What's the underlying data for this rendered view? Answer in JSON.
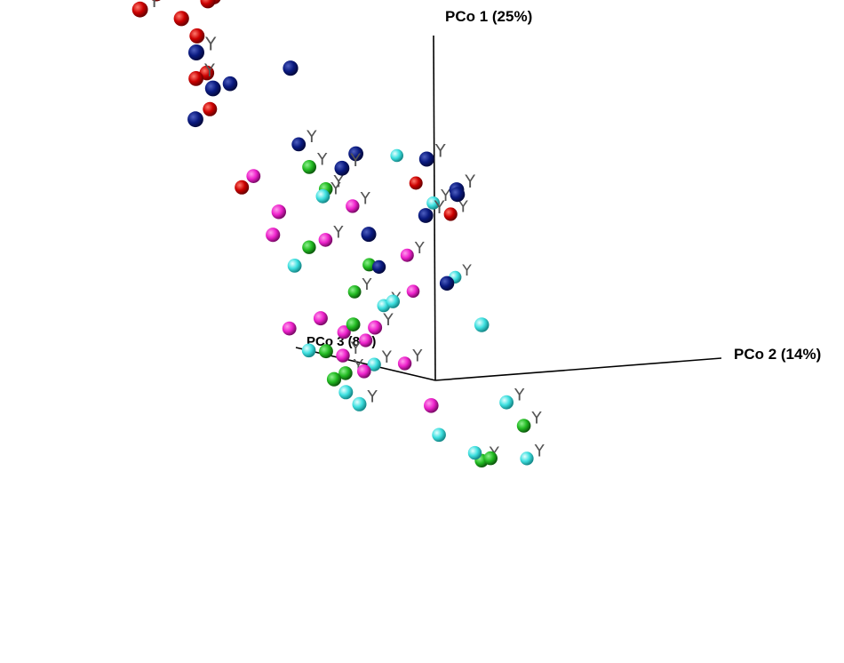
{
  "chart_data": {
    "type": "scatter",
    "projection": "3d-perspective",
    "axes": {
      "pco1": "PCo 1 (25%)",
      "pco2": "PCo 2 (14%)",
      "pco3": "PCo 3 (8%)"
    },
    "marker_text": "Y",
    "colors": {
      "red": "#cc0000",
      "navy": "#0a1a80",
      "green": "#22bb22",
      "cyan": "#3ee0e0",
      "magenta": "#ee22cc"
    },
    "series": [
      {
        "color": "red",
        "points": [
          {
            "x": 0.52,
            "y": 0.97,
            "z": 0.78,
            "label": "Y"
          },
          {
            "x": 0.53,
            "y": 0.95,
            "z": 0.7,
            "label": "Y"
          },
          {
            "x": 0.56,
            "y": 0.93,
            "z": 0.66
          },
          {
            "x": 0.6,
            "y": 0.92,
            "z": 0.6,
            "label": "Y"
          },
          {
            "x": 0.62,
            "y": 0.93,
            "z": 0.6
          },
          {
            "x": 0.55,
            "y": 0.88,
            "z": 0.68,
            "label": "Y"
          },
          {
            "x": 0.6,
            "y": 0.86,
            "z": 0.64
          },
          {
            "x": 0.63,
            "y": 0.81,
            "z": 0.63
          },
          {
            "x": 0.73,
            "y": 0.69,
            "z": 0.66
          },
          {
            "x": 0.67,
            "y": 0.68,
            "z": 0.65,
            "label": "Y"
          },
          {
            "x": 0.83,
            "y": 0.57,
            "z": 0.7
          },
          {
            "x": 0.58,
            "y": 0.39,
            "z": 0.23,
            "label": "Y"
          },
          {
            "x": 0.69,
            "y": 0.45,
            "z": 0.33
          },
          {
            "x": 0.8,
            "y": 0.36,
            "z": 0.64
          }
        ]
      },
      {
        "color": "navy",
        "points": [
          {
            "x": 0.38,
            "y": 0.79,
            "z": 0.38
          },
          {
            "x": 0.4,
            "y": 0.8,
            "z": 0.53,
            "label": "Y"
          },
          {
            "x": 0.41,
            "y": 0.7,
            "z": 0.51
          },
          {
            "x": 0.44,
            "y": 0.6,
            "z": 0.55
          },
          {
            "x": 0.35,
            "y": 0.57,
            "z": 0.27
          },
          {
            "x": 0.37,
            "y": 0.52,
            "z": 0.3,
            "label": "Y"
          },
          {
            "x": 0.16,
            "y": 0.61,
            "z": 0.08,
            "label": "Y"
          },
          {
            "x": 0.17,
            "y": 0.53,
            "z": 0.04,
            "label": "Y"
          },
          {
            "x": 0.15,
            "y": 0.52,
            "z": 0.03
          },
          {
            "x": 0.2,
            "y": 0.44,
            "z": 0.1,
            "label": "Y"
          },
          {
            "x": 0.3,
            "y": 0.35,
            "z": 0.23
          },
          {
            "x": 0.27,
            "y": 0.24,
            "z": 0.1
          },
          {
            "x": 0.65,
            "y": 0.68,
            "z": 0.59
          },
          {
            "x": 0.7,
            "y": 0.52,
            "z": 0.51,
            "label": "Y"
          },
          {
            "x": 0.72,
            "y": 0.19,
            "z": 0.4
          }
        ]
      },
      {
        "color": "green",
        "points": [
          {
            "x": 0.69,
            "y": 0.46,
            "z": 0.49,
            "label": "Y"
          },
          {
            "x": 0.7,
            "y": 0.4,
            "z": 0.47,
            "label": "Y"
          },
          {
            "x": 0.8,
            "y": 0.21,
            "z": 0.54
          },
          {
            "x": 0.8,
            "y": 0.18,
            "z": 0.45
          },
          {
            "x": 0.84,
            "y": 0.09,
            "z": 0.49,
            "label": "Y"
          },
          {
            "x": 0.63,
            "y": 0.03,
            "z": 0.4
          },
          {
            "x": 0.65,
            "y": -0.06,
            "z": 0.45
          },
          {
            "x": 0.67,
            "y": -0.12,
            "z": 0.43,
            "label": "Y"
          },
          {
            "x": 0.54,
            "y": -0.12,
            "z": 0.39
          },
          {
            "x": 0.3,
            "y": -0.15,
            "z": 0.0,
            "label": "Y"
          },
          {
            "x": 0.39,
            "y": -0.27,
            "z": 0.09
          },
          {
            "x": 0.45,
            "y": -0.29,
            "z": 0.13,
            "label": "Y"
          }
        ]
      },
      {
        "color": "cyan",
        "points": [
          {
            "x": 0.83,
            "y": 0.5,
            "z": 0.42
          },
          {
            "x": 0.68,
            "y": 0.4,
            "z": 0.3,
            "label": "Y"
          },
          {
            "x": 0.69,
            "y": 0.38,
            "z": 0.47,
            "label": "Y"
          },
          {
            "x": 0.75,
            "y": 0.16,
            "z": 0.54
          },
          {
            "x": 0.82,
            "y": 0.17,
            "z": 0.33,
            "label": "Y"
          },
          {
            "x": 0.78,
            "y": 0.07,
            "z": 0.42,
            "label": "Y"
          },
          {
            "x": 0.63,
            "y": 0.11,
            "z": 0.34
          },
          {
            "x": 0.7,
            "y": -0.09,
            "z": 0.4,
            "label": "Y"
          },
          {
            "x": 0.75,
            "y": -0.08,
            "z": 0.52
          },
          {
            "x": 0.58,
            "y": -0.16,
            "z": 0.39
          },
          {
            "x": 0.58,
            "y": -0.19,
            "z": 0.37,
            "label": "Y"
          },
          {
            "x": 0.16,
            "y": 0.15,
            "z": 0.0
          },
          {
            "x": 0.31,
            "y": -0.09,
            "z": 0.03,
            "label": "Y"
          },
          {
            "x": 0.4,
            "y": -0.26,
            "z": 0.04,
            "label": "Y"
          },
          {
            "x": 0.45,
            "y": -0.27,
            "z": 0.14
          },
          {
            "x": 0.51,
            "y": -0.24,
            "z": 0.22
          }
        ]
      },
      {
        "color": "magenta",
        "points": [
          {
            "x": 0.84,
            "y": 0.39,
            "z": 0.64
          },
          {
            "x": 0.7,
            "y": 0.36,
            "z": 0.43,
            "label": "Y"
          },
          {
            "x": 0.63,
            "y": 0.33,
            "z": 0.51
          },
          {
            "x": 0.68,
            "y": 0.24,
            "z": 0.34,
            "label": "Y"
          },
          {
            "x": 0.7,
            "y": 0.25,
            "z": 0.55
          },
          {
            "x": 0.72,
            "y": 0.25,
            "z": 0.48,
            "label": "Y"
          },
          {
            "x": 0.79,
            "y": 0.12,
            "z": 0.38
          },
          {
            "x": 0.5,
            "y": 0.05,
            "z": 0.31,
            "label": "Y"
          },
          {
            "x": 0.61,
            "y": 0.04,
            "z": 0.44
          },
          {
            "x": 0.73,
            "y": -0.02,
            "z": 0.54
          },
          {
            "x": 0.74,
            "y": -0.03,
            "z": 0.43
          },
          {
            "x": 0.78,
            "y": -0.02,
            "z": 0.48
          },
          {
            "x": 0.6,
            "y": -0.06,
            "z": 0.31,
            "label": "Y"
          },
          {
            "x": 0.73,
            "y": -0.08,
            "z": 0.46,
            "label": "Y"
          },
          {
            "x": 0.62,
            "y": -0.1,
            "z": 0.38
          },
          {
            "x": 0.28,
            "y": -0.12,
            "z": 0.13
          }
        ]
      }
    ]
  }
}
